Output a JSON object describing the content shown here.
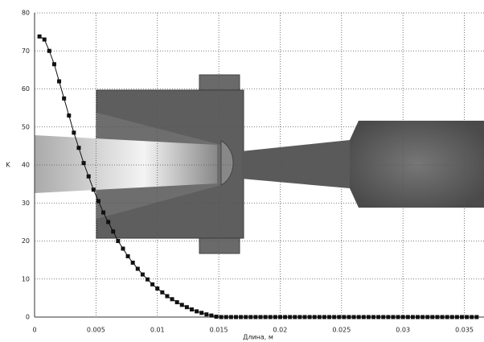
{
  "chart_data": {
    "type": "line",
    "x_label": "Длина, м",
    "y_label": "K",
    "x": [
      0.0004,
      0.0008,
      0.0012,
      0.0016,
      0.002,
      0.0024,
      0.0028,
      0.0032,
      0.0036,
      0.004,
      0.0044,
      0.0048,
      0.0052,
      0.0056,
      0.006,
      0.0064,
      0.0068,
      0.0072,
      0.0076,
      0.008,
      0.0084,
      0.0088,
      0.0092,
      0.0096,
      0.01,
      0.0104,
      0.0108,
      0.0112,
      0.0116,
      0.012,
      0.0124,
      0.0128,
      0.0132,
      0.0136,
      0.014,
      0.0144,
      0.0148,
      0.0152,
      0.0156,
      0.016,
      0.0164,
      0.0168,
      0.0172,
      0.0176,
      0.018,
      0.0184,
      0.0188,
      0.0192,
      0.0196,
      0.02,
      0.0204,
      0.0208,
      0.0212,
      0.0216,
      0.022,
      0.0224,
      0.0228,
      0.0232,
      0.0236,
      0.024,
      0.0244,
      0.0248,
      0.0252,
      0.0256,
      0.026,
      0.0264,
      0.0268,
      0.0272,
      0.0276,
      0.028,
      0.0284,
      0.0288,
      0.0292,
      0.0296,
      0.03,
      0.0304,
      0.0308,
      0.0312,
      0.0316,
      0.032,
      0.0324,
      0.0328,
      0.0332,
      0.0336,
      0.034,
      0.0344,
      0.0348,
      0.0352,
      0.0356,
      0.036
    ],
    "series": [
      {
        "color": "#111111",
        "values": [
          73.8,
          73,
          70,
          66.5,
          62,
          57.5,
          53,
          48.5,
          44.5,
          40.5,
          37,
          33.5,
          30.5,
          27.5,
          25,
          22.5,
          20,
          18,
          16,
          14.3,
          12.7,
          11.2,
          9.9,
          8.6,
          7.5,
          6.5,
          5.5,
          4.7,
          3.9,
          3.2,
          2.6,
          2,
          1.5,
          1.1,
          0.7,
          0.4,
          0.1,
          0,
          0,
          0,
          0,
          0,
          0,
          0,
          0,
          0,
          0,
          0,
          0,
          0,
          0,
          0,
          0,
          0,
          0,
          0,
          0,
          0,
          0,
          0,
          0,
          0,
          0,
          0,
          0,
          0,
          0,
          0,
          0,
          0,
          0,
          0,
          0,
          0,
          0,
          0,
          0,
          0,
          0,
          0,
          0,
          0,
          0,
          0,
          0,
          0,
          0,
          0,
          0,
          0
        ]
      }
    ],
    "xlim": [
      0,
      0.0366
    ],
    "ylim": [
      0,
      80
    ],
    "xticks": [
      0,
      0.005,
      0.01,
      0.015,
      0.02,
      0.025,
      0.03,
      0.035
    ],
    "yticks": [
      0,
      10,
      20,
      30,
      40,
      50,
      60,
      70,
      80
    ],
    "grid": true
  }
}
